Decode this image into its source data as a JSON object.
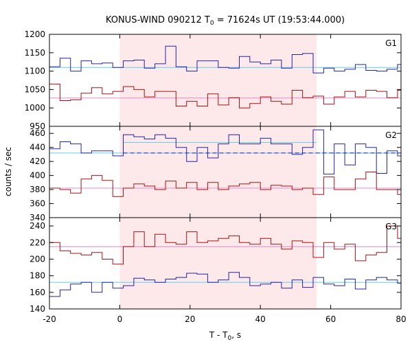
{
  "title_main": "KONUS-WIND 090212 T",
  "title_sub": "0",
  "title_rest": " = 71624s UT (19:53:44.000)",
  "ylabel": "counts / sec",
  "xlabel_main": "T - T",
  "xlabel_sub": "0",
  "xlabel_rest": ", s",
  "chart_data": {
    "type": "line",
    "line_shape": "step",
    "x_range": [
      -20,
      80
    ],
    "x_ticks": [
      -20,
      0,
      20,
      40,
      60,
      80
    ],
    "x_tick_labels": [
      "-20",
      "0",
      "20",
      "40",
      "60",
      "80"
    ],
    "shaded_interval": [
      0,
      56
    ],
    "shade_color": "#fde8ea",
    "panels": [
      {
        "name": "G1",
        "y_range": [
          950,
          1200
        ],
        "y_ticks": [
          950,
          1000,
          1050,
          1100,
          1150,
          1200
        ],
        "series": [
          {
            "color": "#2222aa",
            "bin_edges": [
              -20,
              -17,
              -14,
              -11,
              -8,
              -5,
              -2,
              1,
              4,
              7,
              10,
              13,
              16,
              19,
              22,
              25,
              28,
              31,
              34,
              37,
              40,
              43,
              46,
              49,
              52,
              55,
              58,
              61,
              64,
              67,
              70,
              73,
              76,
              79,
              80
            ],
            "values": [
              1112,
              1135,
              1100,
              1128,
              1120,
              1122,
              1110,
              1128,
              1130,
              1108,
              1120,
              1168,
              1112,
              1100,
              1128,
              1128,
              1110,
              1108,
              1140,
              1125,
              1120,
              1130,
              1108,
              1145,
              1148,
              1095,
              1108,
              1100,
              1105,
              1118,
              1102,
              1100,
              1105,
              1118
            ]
          },
          {
            "color": "#aa1111",
            "bin_edges": [
              -20,
              -17,
              -14,
              -11,
              -8,
              -5,
              -2,
              1,
              4,
              7,
              10,
              13,
              16,
              19,
              22,
              25,
              28,
              31,
              34,
              37,
              40,
              43,
              46,
              49,
              52,
              55,
              58,
              61,
              64,
              67,
              70,
              73,
              76,
              79,
              80
            ],
            "values": [
              1065,
              1020,
              1022,
              1040,
              1055,
              1038,
              1045,
              1058,
              1050,
              1030,
              1045,
              1045,
              1005,
              1018,
              1005,
              1038,
              1008,
              1028,
              1000,
              1012,
              1030,
              1018,
              1010,
              1048,
              1028,
              1032,
              1010,
              1030,
              1045,
              1030,
              1048,
              1045,
              1028,
              1048
            ]
          }
        ],
        "mean_lines": [
          {
            "value": 1110,
            "color": "#66ccee"
          },
          {
            "value": 1027,
            "color": "#ee88cc"
          }
        ]
      },
      {
        "name": "G2",
        "y_range": [
          340,
          470
        ],
        "y_ticks": [
          340,
          360,
          380,
          400,
          420,
          440,
          460
        ],
        "series": [
          {
            "color": "#2222aa",
            "bin_edges": [
              -20,
              -17,
              -14,
              -11,
              -8,
              -5,
              -2,
              1,
              4,
              7,
              10,
              13,
              16,
              19,
              22,
              25,
              28,
              31,
              34,
              37,
              40,
              43,
              46,
              49,
              52,
              55,
              58,
              61,
              64,
              67,
              70,
              73,
              76,
              79,
              80
            ],
            "values": [
              438,
              448,
              445,
              432,
              435,
              435,
              428,
              458,
              455,
              452,
              458,
              453,
              440,
              420,
              440,
              425,
              445,
              458,
              445,
              445,
              453,
              445,
              445,
              430,
              440,
              465,
              402,
              445,
              415,
              445,
              440,
              403,
              435,
              428
            ]
          },
          {
            "color": "#aa1111",
            "bin_edges": [
              -20,
              -17,
              -14,
              -11,
              -8,
              -5,
              -2,
              1,
              4,
              7,
              10,
              13,
              16,
              19,
              22,
              25,
              28,
              31,
              34,
              37,
              40,
              43,
              46,
              49,
              52,
              55,
              58,
              61,
              64,
              67,
              70,
              73,
              76,
              79,
              80
            ],
            "values": [
              382,
              380,
              375,
              395,
              400,
              393,
              370,
              382,
              388,
              385,
              380,
              392,
              382,
              390,
              380,
              390,
              380,
              385,
              388,
              390,
              380,
              386,
              385,
              380,
              382,
              373,
              398,
              380,
              380,
              395,
              405,
              380,
              380,
              373
            ]
          }
        ],
        "mean_lines": [
          {
            "value": 432,
            "color": "#66ccee"
          },
          {
            "value": 382,
            "color": "#ee88cc"
          }
        ],
        "segment_lines": [
          {
            "x1": 1,
            "x2": 56,
            "value": 447,
            "color": "#66ccee"
          },
          {
            "x1": 56,
            "x2": 80,
            "value": 432,
            "color": "#66ccee"
          }
        ],
        "dashed_line": {
          "x1": 1,
          "x2": 80,
          "value": 432,
          "color": "#2222aa"
        }
      },
      {
        "name": "G3",
        "y_range": [
          140,
          250
        ],
        "y_ticks": [
          140,
          160,
          180,
          200,
          220,
          240
        ],
        "series": [
          {
            "color": "#aa1111",
            "bin_edges": [
              -20,
              -17,
              -14,
              -11,
              -8,
              -5,
              -2,
              1,
              4,
              7,
              10,
              13,
              16,
              19,
              22,
              25,
              28,
              31,
              34,
              37,
              40,
              43,
              46,
              49,
              52,
              55,
              58,
              61,
              64,
              67,
              70,
              73,
              76,
              79,
              80
            ],
            "values": [
              220,
              210,
              207,
              205,
              208,
              200,
              194,
              215,
              233,
              215,
              230,
              220,
              218,
              233,
              220,
              222,
              225,
              228,
              220,
              218,
              225,
              218,
              212,
              222,
              220,
              202,
              220,
              212,
              218,
              198,
              205,
              208,
              240,
              225
            ]
          },
          {
            "color": "#2222aa",
            "bin_edges": [
              -20,
              -17,
              -14,
              -11,
              -8,
              -5,
              -2,
              1,
              4,
              7,
              10,
              13,
              16,
              19,
              22,
              25,
              28,
              31,
              34,
              37,
              40,
              43,
              46,
              49,
              52,
              55,
              58,
              61,
              64,
              67,
              70,
              73,
              76,
              79,
              80
            ],
            "values": [
              155,
              163,
              170,
              172,
              160,
              172,
              165,
              168,
              177,
              175,
              172,
              176,
              178,
              183,
              182,
              172,
              175,
              184,
              178,
              168,
              170,
              172,
              165,
              175,
              166,
              178,
              170,
              168,
              176,
              164,
              175,
              178,
              175,
              171
            ]
          }
        ],
        "mean_lines": [
          {
            "value": 215,
            "color": "#ee88cc"
          },
          {
            "value": 172,
            "color": "#66ccee"
          }
        ]
      }
    ]
  }
}
